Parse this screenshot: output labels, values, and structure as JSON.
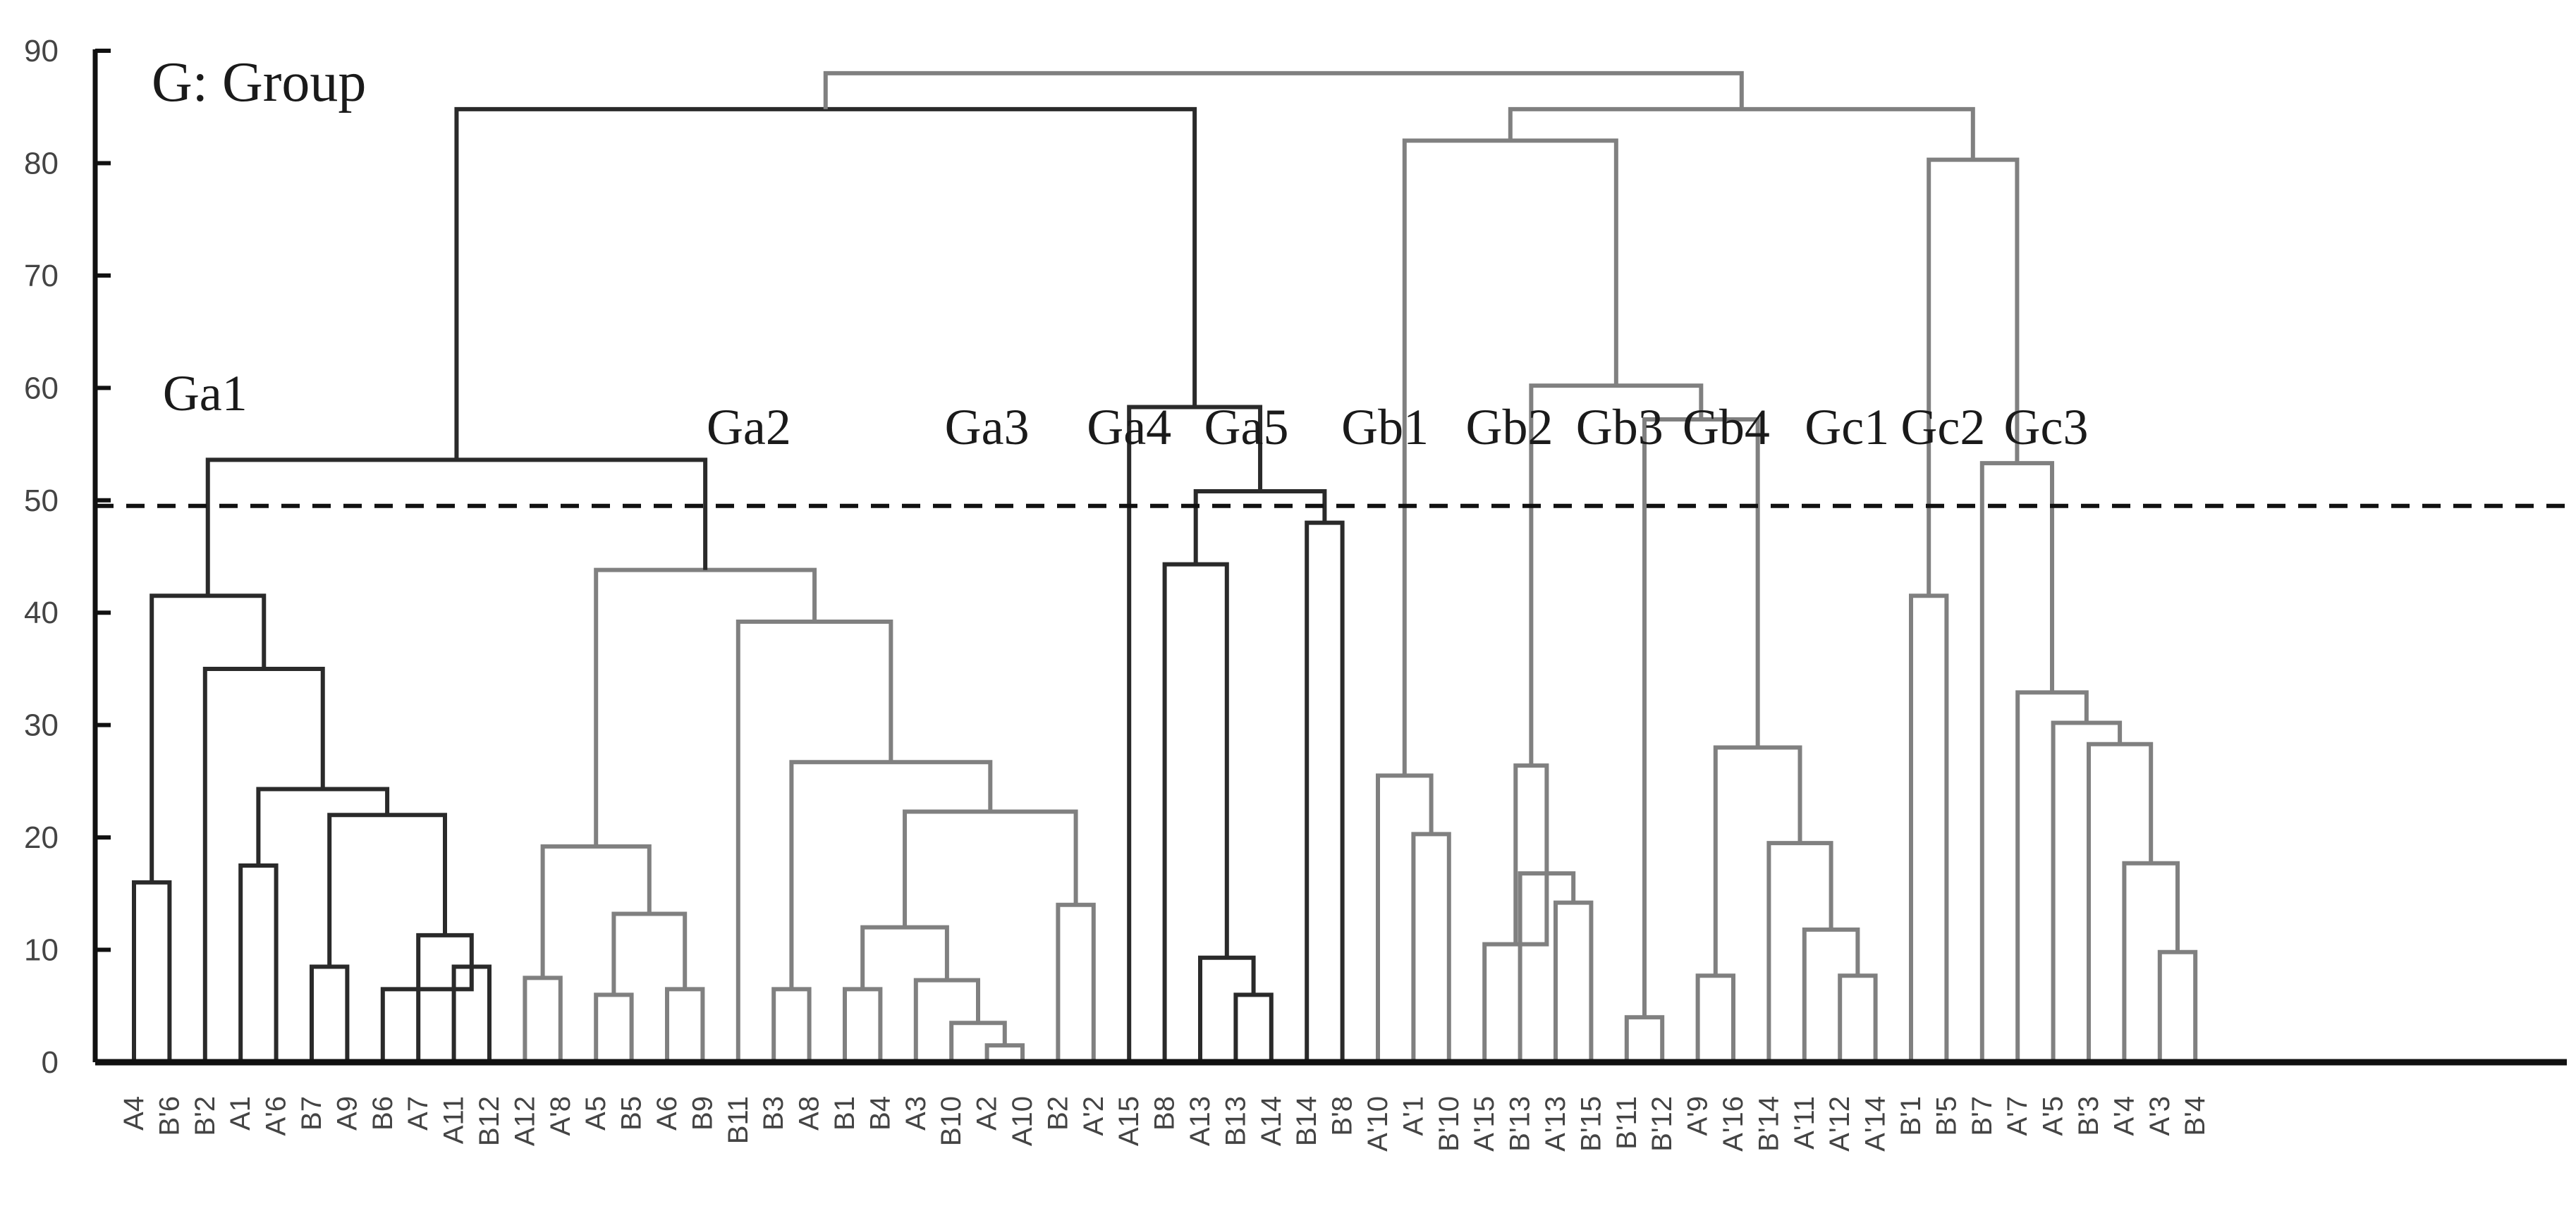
{
  "chart_data": {
    "type": "dendrogram",
    "title": "G: Group",
    "ylim": [
      0,
      90
    ],
    "yticks": [
      0,
      10,
      20,
      30,
      40,
      50,
      60,
      70,
      80,
      90
    ],
    "cut_height": 49.5,
    "colors": {
      "dark": "#2a2a2a",
      "gray": "#808080",
      "axis": "#111111"
    },
    "leaves": [
      "A4",
      "B'6",
      "B'2",
      "A1",
      "A'6",
      "B7",
      "A9",
      "B6",
      "A7",
      "A11",
      "B12",
      "A12",
      "A'8",
      "A5",
      "B5",
      "A6",
      "B9",
      "B11",
      "B3",
      "A8",
      "B1",
      "B4",
      "A3",
      "B10",
      "A2",
      "A10",
      "B2",
      "A'2",
      "A15",
      "B8",
      "A13",
      "B13",
      "A14",
      "B14",
      "B'8",
      "A'10",
      "A'1",
      "B'10",
      "A'15",
      "B'13",
      "A'13",
      "B'15",
      "B'11",
      "B'12",
      "A'9",
      "A'16",
      "B'14",
      "A'11",
      "A'12",
      "A'14",
      "B'1",
      "B'5",
      "B'7",
      "A'7",
      "A'5",
      "B'3",
      "A'4",
      "A'3",
      "B'4"
    ],
    "merges": [
      {
        "id": "a1",
        "l": 0,
        "r": 1,
        "h": 16,
        "c": "dark"
      },
      {
        "id": "a2",
        "l": 3,
        "r": 4,
        "h": 17.5,
        "c": "dark"
      },
      {
        "id": "a3",
        "l": 5,
        "r": 6,
        "h": 8.5,
        "c": "dark"
      },
      {
        "id": "a4",
        "l": 9,
        "r": 10,
        "h": 8.5,
        "c": "dark"
      },
      {
        "id": "a5",
        "l": 7,
        "r": "a4",
        "h": 6.5,
        "c": "dark"
      },
      {
        "id": "a6",
        "l": 8,
        "r": "a4",
        "h": 11.3,
        "c": "dark"
      },
      {
        "id": "a7",
        "l": "a3",
        "r": "a6",
        "h": 22,
        "c": "dark"
      },
      {
        "id": "a8",
        "l": "a2",
        "r": "a7",
        "h": 24.3,
        "c": "dark"
      },
      {
        "id": "a9",
        "l": 2,
        "r": "a8",
        "h": 35,
        "c": "dark"
      },
      {
        "id": "a10",
        "l": "a1",
        "r": "a9",
        "h": 41.5,
        "c": "dark"
      },
      {
        "id": "b1",
        "l": 13,
        "r": 14,
        "h": 6,
        "c": "gray"
      },
      {
        "id": "b2",
        "l": 15,
        "r": 16,
        "h": 6.5,
        "c": "gray"
      },
      {
        "id": "b3",
        "l": "b1",
        "r": "b2",
        "h": 13.2,
        "c": "gray"
      },
      {
        "id": "b4",
        "l": 11,
        "r": 12,
        "h": 7.5,
        "c": "gray"
      },
      {
        "id": "b5",
        "l": "b4",
        "r": "b3",
        "h": 19.2,
        "c": "gray"
      },
      {
        "id": "b6",
        "l": 18,
        "r": 19,
        "h": 6.5,
        "c": "gray"
      },
      {
        "id": "b7",
        "l": 20,
        "r": 21,
        "h": 6.5,
        "c": "gray"
      },
      {
        "id": "b8",
        "l": 24,
        "r": 25,
        "h": 1.5,
        "c": "gray"
      },
      {
        "id": "b9",
        "l": 23,
        "r": "b8",
        "h": 3.5,
        "c": "gray"
      },
      {
        "id": "b10",
        "l": 22,
        "r": "b9",
        "h": 7.3,
        "c": "gray"
      },
      {
        "id": "b11",
        "l": "b7",
        "r": "b10",
        "h": 12,
        "c": "gray"
      },
      {
        "id": "b12",
        "l": 26,
        "r": 27,
        "h": 14,
        "c": "gray"
      },
      {
        "id": "b13",
        "l": "b11",
        "r": "b12",
        "h": 22.3,
        "c": "gray"
      },
      {
        "id": "b14",
        "l": "b6",
        "r": "b13",
        "h": 26.7,
        "c": "gray"
      },
      {
        "id": "b15",
        "l": 17,
        "r": "b14",
        "h": 39.2,
        "c": "gray"
      },
      {
        "id": "b16",
        "l": "b5",
        "r": "b15",
        "h": 43.8,
        "c": "gray"
      },
      {
        "id": "c1",
        "l": "a10",
        "r": "b16",
        "h": 53.6,
        "c": "dark"
      },
      {
        "id": "c2",
        "l": 31,
        "r": 32,
        "h": 6,
        "c": "dark"
      },
      {
        "id": "c3",
        "l": 30,
        "r": "c2",
        "h": 9.3,
        "c": "dark"
      },
      {
        "id": "c4",
        "l": 29,
        "r": "c3",
        "h": 44.3,
        "c": "dark"
      },
      {
        "id": "c5",
        "l": 33,
        "r": 34,
        "h": 48,
        "c": "dark"
      },
      {
        "id": "c6",
        "l": "c4",
        "r": "c5",
        "h": 50.8,
        "c": "dark"
      },
      {
        "id": "c7",
        "l": 28,
        "r": "c6",
        "h": 58.3,
        "c": "dark"
      },
      {
        "id": "c8",
        "l": "c1",
        "r": "c7",
        "h": 84.8,
        "c": "dark"
      },
      {
        "id": "d1",
        "l": 36,
        "r": 37,
        "h": 20.3,
        "c": "gray"
      },
      {
        "id": "d2",
        "l": 35,
        "r": "d1",
        "h": 25.5,
        "c": "gray"
      },
      {
        "id": "d3",
        "l": 40,
        "r": 41,
        "h": 14.2,
        "c": "gray"
      },
      {
        "id": "d4",
        "l": 39,
        "r": "d3",
        "h": 16.8,
        "c": "gray"
      },
      {
        "id": "d5",
        "l": 38,
        "r": "d4",
        "h": 10.5,
        "c": "gray"
      },
      {
        "id": "d6",
        "l": "d5",
        "r": "d4",
        "h": 26.4,
        "c": "gray"
      },
      {
        "id": "d7",
        "l": 42,
        "r": 43,
        "h": 4,
        "c": "gray"
      },
      {
        "id": "d8",
        "l": 48,
        "r": 49,
        "h": 7.7,
        "c": "gray"
      },
      {
        "id": "d9",
        "l": 47,
        "r": "d8",
        "h": 11.8,
        "c": "gray"
      },
      {
        "id": "d10",
        "l": 46,
        "r": "d9",
        "h": 19.5,
        "c": "gray"
      },
      {
        "id": "d11",
        "l": 44,
        "r": 45,
        "h": 7.7,
        "c": "gray"
      },
      {
        "id": "d12",
        "l": "d11",
        "r": "d10",
        "h": 28,
        "c": "gray"
      },
      {
        "id": "d13",
        "l": "d7",
        "r": "d12",
        "h": 57.2,
        "c": "gray"
      },
      {
        "id": "d14",
        "l": "d6",
        "r": "d13",
        "h": 60.2,
        "c": "gray"
      },
      {
        "id": "d15",
        "l": "d2",
        "r": "d14",
        "h": 82,
        "c": "gray"
      },
      {
        "id": "e1",
        "l": 50,
        "r": 51,
        "h": 41.5,
        "c": "gray"
      },
      {
        "id": "e2",
        "l": 57,
        "r": 58,
        "h": 9.8,
        "c": "gray"
      },
      {
        "id": "e3",
        "l": 56,
        "r": "e2",
        "h": 17.7,
        "c": "gray"
      },
      {
        "id": "e4",
        "l": 55,
        "r": "e3",
        "h": 28.3,
        "c": "gray"
      },
      {
        "id": "e5",
        "l": 54,
        "r": "e4",
        "h": 30.2,
        "c": "gray"
      },
      {
        "id": "e6",
        "l": 53,
        "r": "e5",
        "h": 32.9,
        "c": "gray"
      },
      {
        "id": "e7",
        "l": 52,
        "r": "e6",
        "h": 53.3,
        "c": "gray"
      },
      {
        "id": "e8",
        "l": "e1",
        "r": "e7",
        "h": 80.3,
        "c": "gray"
      },
      {
        "id": "f1",
        "l": "d15",
        "r": "e8",
        "h": 84.8,
        "c": "gray"
      },
      {
        "id": "root",
        "l": "c8",
        "r": "f1",
        "h": 88,
        "c": "gray"
      }
    ],
    "group_labels": [
      {
        "text": "Ga1",
        "x": 2.0,
        "y": 58
      },
      {
        "text": "Ga2",
        "x": 17.3,
        "y": 55
      },
      {
        "text": "Ga3",
        "x": 24.0,
        "y": 55
      },
      {
        "text": "Ga4",
        "x": 28.0,
        "y": 55
      },
      {
        "text": "Ga5",
        "x": 31.3,
        "y": 55
      },
      {
        "text": "Gb1",
        "x": 35.2,
        "y": 55
      },
      {
        "text": "Gb2",
        "x": 38.7,
        "y": 55
      },
      {
        "text": "Gb3",
        "x": 41.8,
        "y": 55
      },
      {
        "text": "Gb4",
        "x": 44.8,
        "y": 55
      },
      {
        "text": "Gc1",
        "x": 48.2,
        "y": 55
      },
      {
        "text": "Gc2",
        "x": 50.9,
        "y": 55
      },
      {
        "text": "Gc3",
        "x": 53.8,
        "y": 55
      }
    ]
  }
}
